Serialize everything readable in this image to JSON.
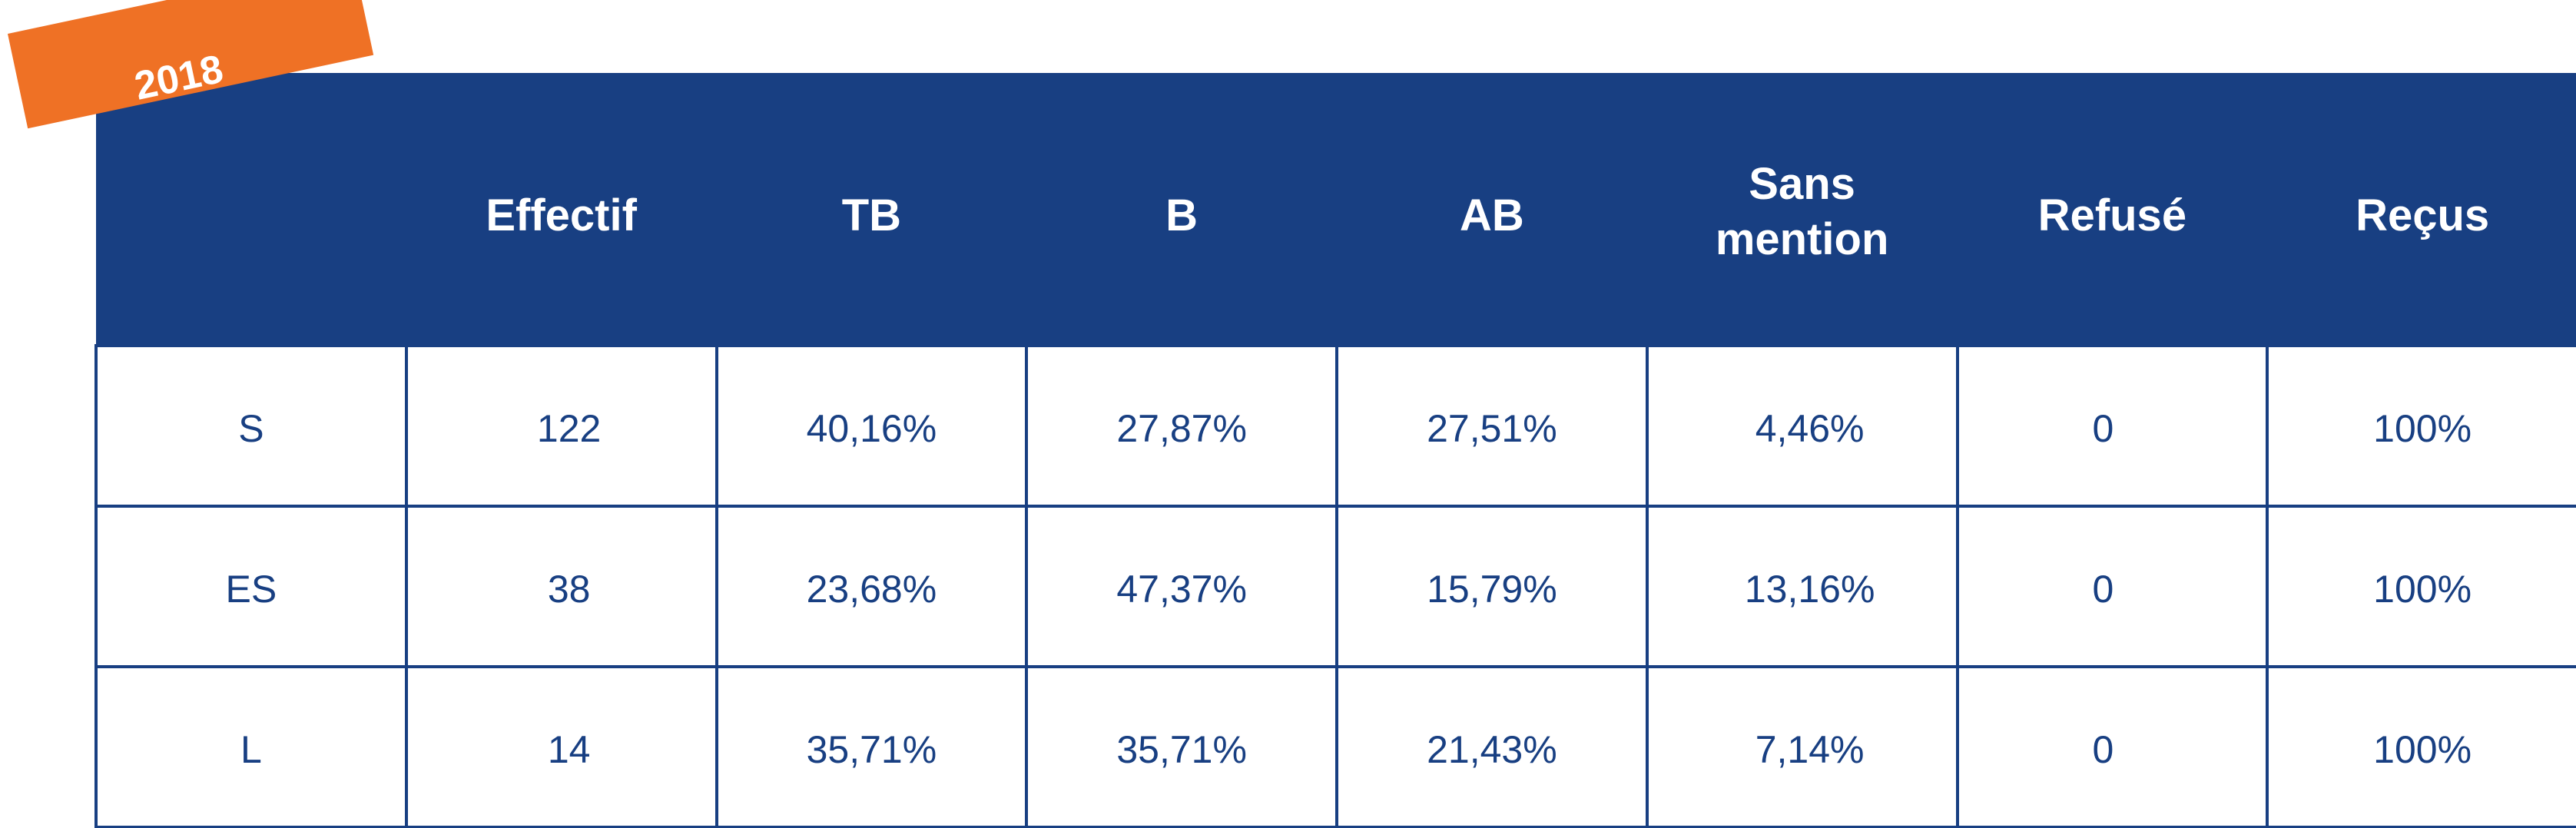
{
  "year_tag": {
    "label": "2018",
    "color": "#ef7125"
  },
  "colors": {
    "header_background": "#183f82",
    "header_text": "#ffffff",
    "cell_text": "#183f82",
    "border": "#183f82"
  },
  "table": {
    "headers": {
      "section": "",
      "effectif": "Effectif",
      "tb": "TB",
      "b": "B",
      "ab": "AB",
      "sans_mention_line1": "Sans",
      "sans_mention_line2": "mention",
      "refuse": "Refusé",
      "recus": "Reçus"
    },
    "rows": [
      {
        "section": "S",
        "effectif": "122",
        "tb": "40,16%",
        "b": "27,87%",
        "ab": "27,51%",
        "sans_mention": "4,46%",
        "refuse": "0",
        "recus": "100%"
      },
      {
        "section": "ES",
        "effectif": "38",
        "tb": "23,68%",
        "b": "47,37%",
        "ab": "15,79%",
        "sans_mention": "13,16%",
        "refuse": "0",
        "recus": "100%"
      },
      {
        "section": "L",
        "effectif": "14",
        "tb": "35,71%",
        "b": "35,71%",
        "ab": "21,43%",
        "sans_mention": "7,14%",
        "refuse": "0",
        "recus": "100%"
      }
    ]
  }
}
